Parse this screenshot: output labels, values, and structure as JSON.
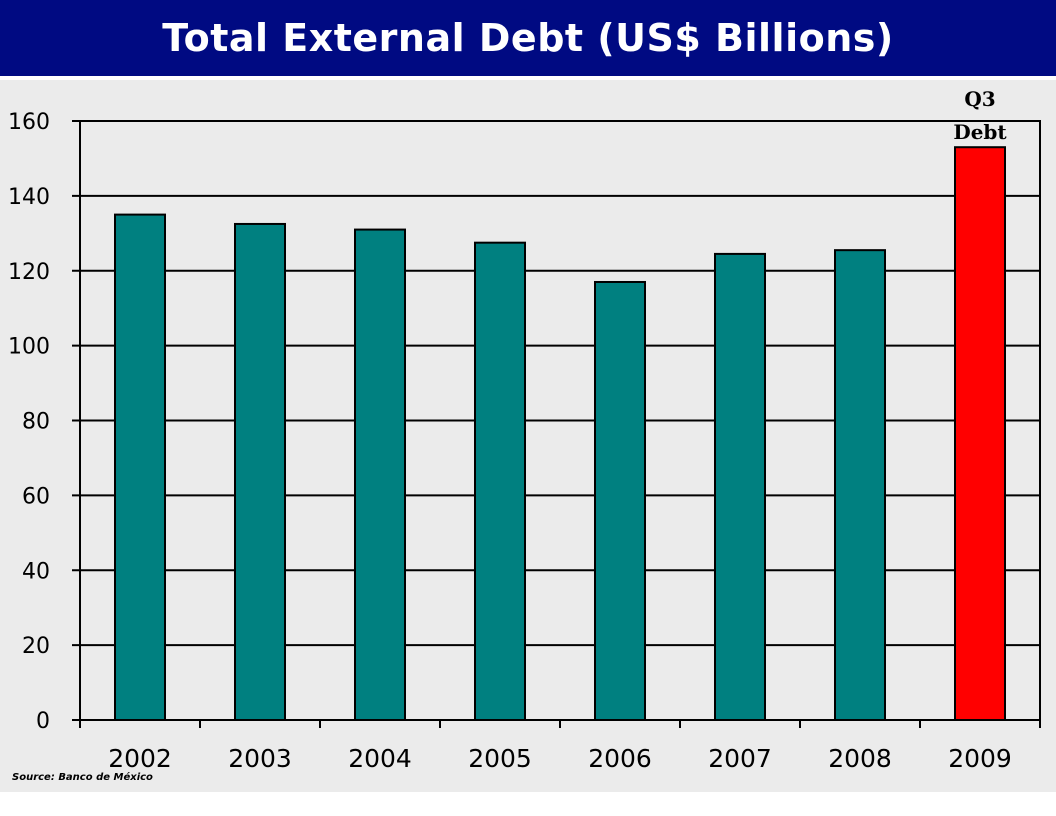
{
  "header": {
    "title": "Total External Debt (US$ Billions)"
  },
  "source": "Source: Banco de México",
  "chart_data": {
    "type": "bar",
    "title": "Total External Debt (US$ Billions)",
    "categories": [
      "2002",
      "2003",
      "2004",
      "2005",
      "2006",
      "2007",
      "2008",
      "2009"
    ],
    "values": [
      135,
      132.5,
      131,
      127.5,
      117,
      124.5,
      125.5,
      153
    ],
    "bar_colors": [
      "#008080",
      "#008080",
      "#008080",
      "#008080",
      "#008080",
      "#008080",
      "#008080",
      "#ff0000"
    ],
    "annotation": {
      "category": "2009",
      "lines": [
        "Q3",
        "Debt"
      ]
    },
    "ylim": [
      0,
      160
    ],
    "yticks": [
      0,
      20,
      40,
      60,
      80,
      100,
      120,
      140,
      160
    ],
    "grid": true,
    "xlabel": "",
    "ylabel": ""
  }
}
